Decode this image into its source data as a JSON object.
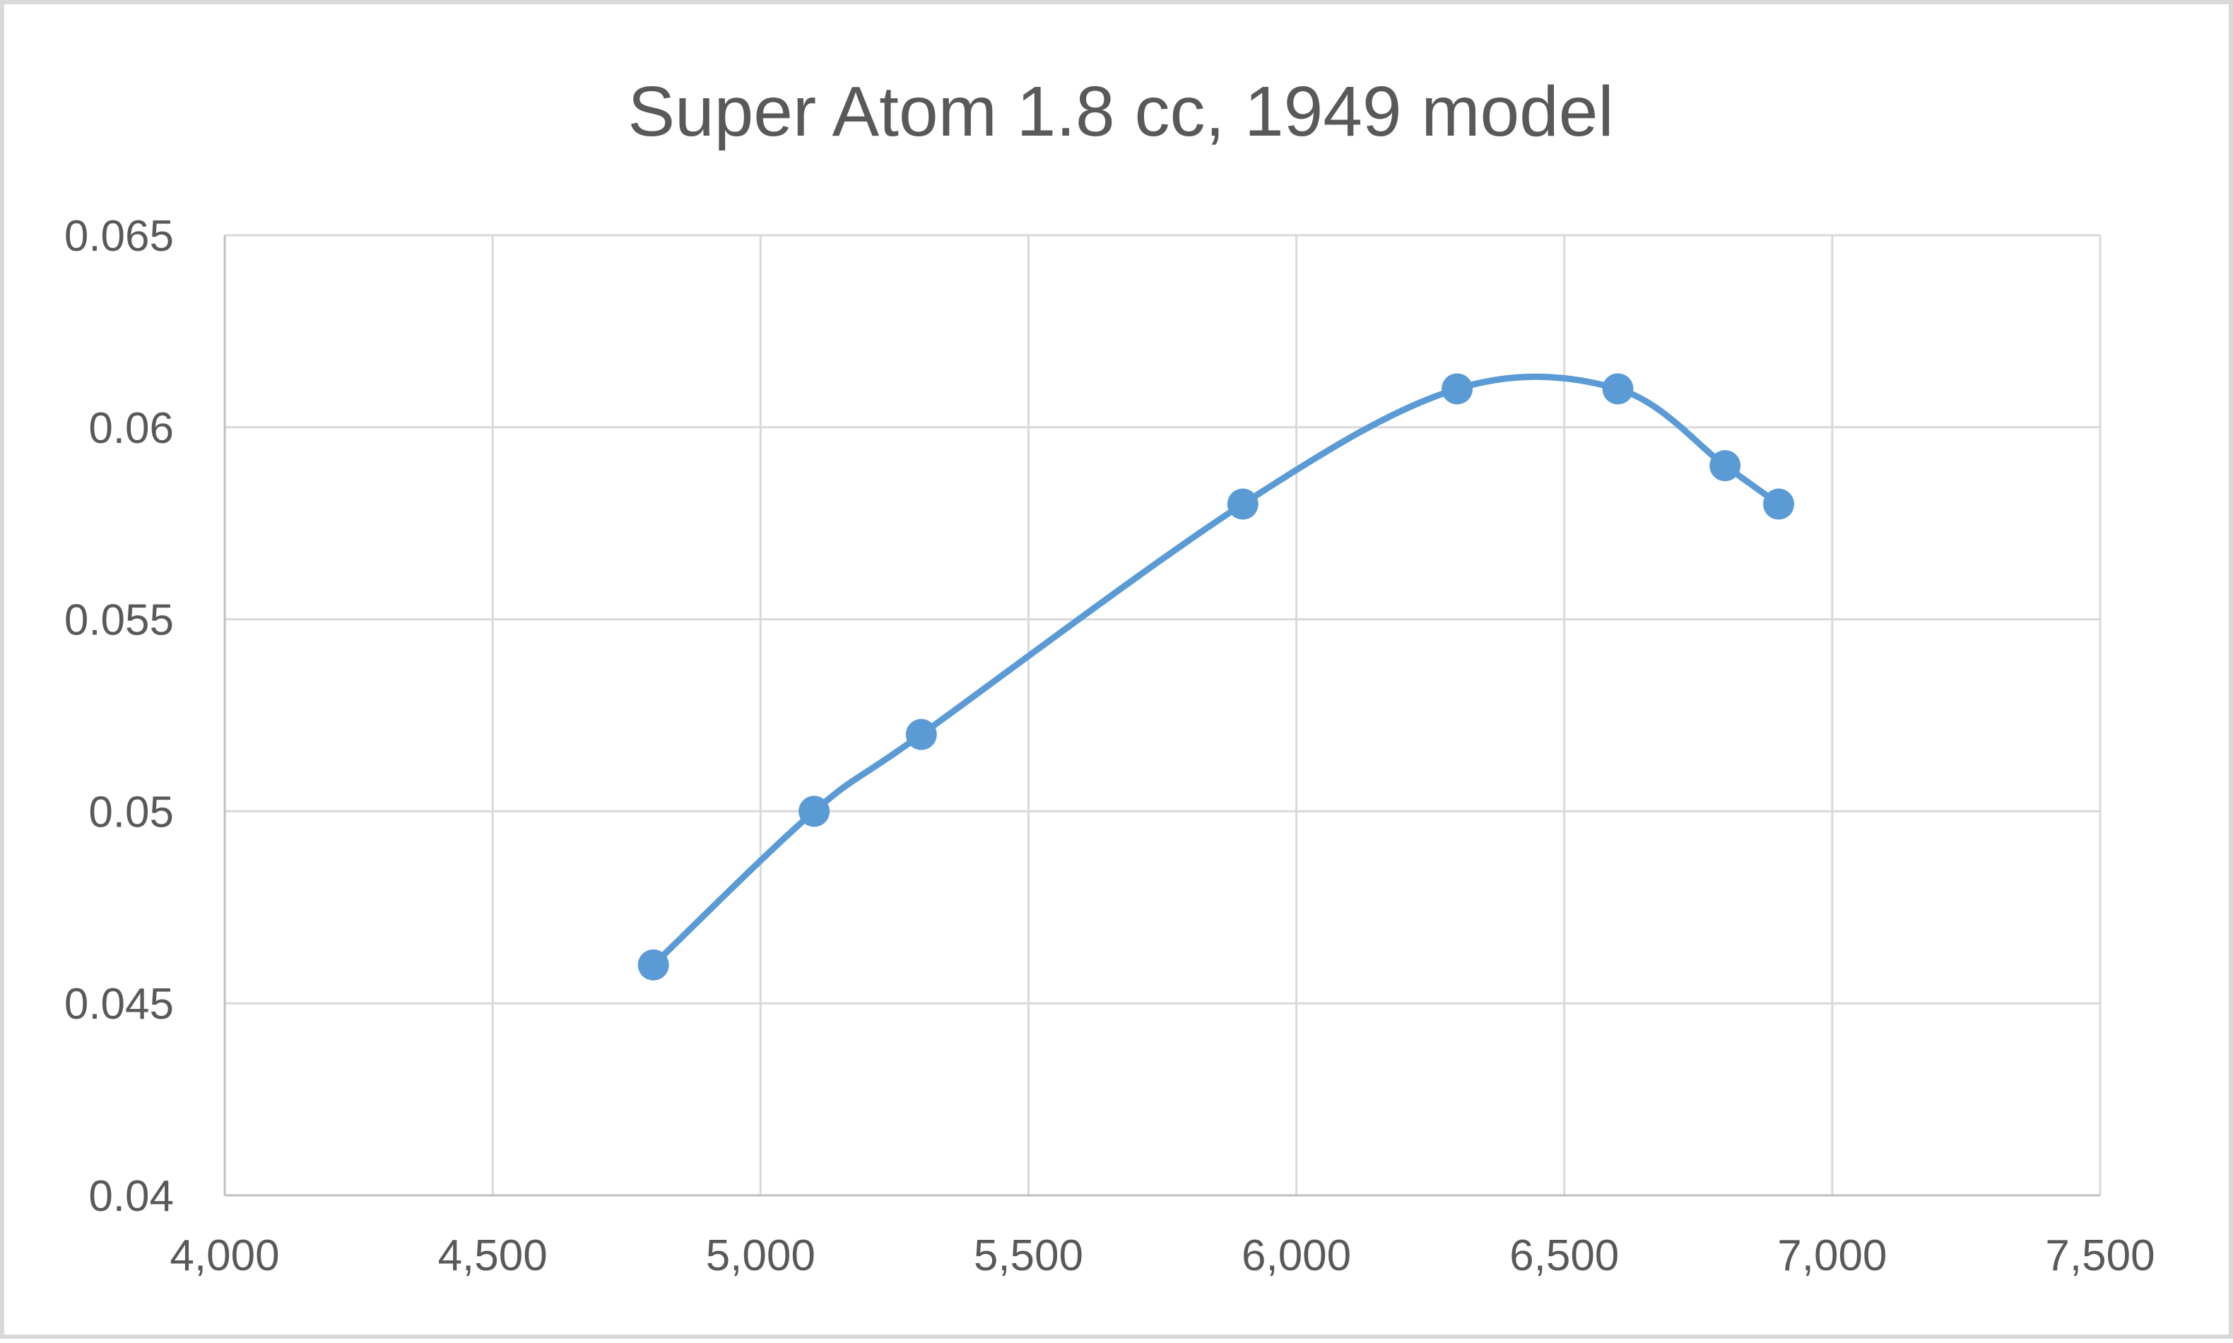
{
  "chart_data": {
    "type": "scatter",
    "title": "Super Atom 1.8 cc, 1949 model",
    "xlabel": "",
    "ylabel": "",
    "xlim": [
      4000,
      7500
    ],
    "ylim": [
      0.04,
      0.065
    ],
    "x_ticks": [
      4000,
      4500,
      5000,
      5500,
      6000,
      6500,
      7000,
      7500
    ],
    "x_tick_labels": [
      "4,000",
      "4,500",
      "5,000",
      "5,500",
      "6,000",
      "6,500",
      "7,000",
      "7,500"
    ],
    "y_ticks": [
      0.04,
      0.045,
      0.05,
      0.055,
      0.06,
      0.065
    ],
    "y_tick_labels": [
      "0.04",
      "0.045",
      "0.05",
      "0.055",
      "0.06",
      "0.065"
    ],
    "grid": true,
    "legend": "none",
    "smoothed_line": true,
    "series": [
      {
        "color": "#5b9bd5",
        "points": [
          {
            "x": 4800,
            "y": 0.046
          },
          {
            "x": 5100,
            "y": 0.05
          },
          {
            "x": 5300,
            "y": 0.052
          },
          {
            "x": 5900,
            "y": 0.058
          },
          {
            "x": 6300,
            "y": 0.061
          },
          {
            "x": 6600,
            "y": 0.061
          },
          {
            "x": 6800,
            "y": 0.059
          },
          {
            "x": 6900,
            "y": 0.058
          }
        ]
      }
    ]
  }
}
